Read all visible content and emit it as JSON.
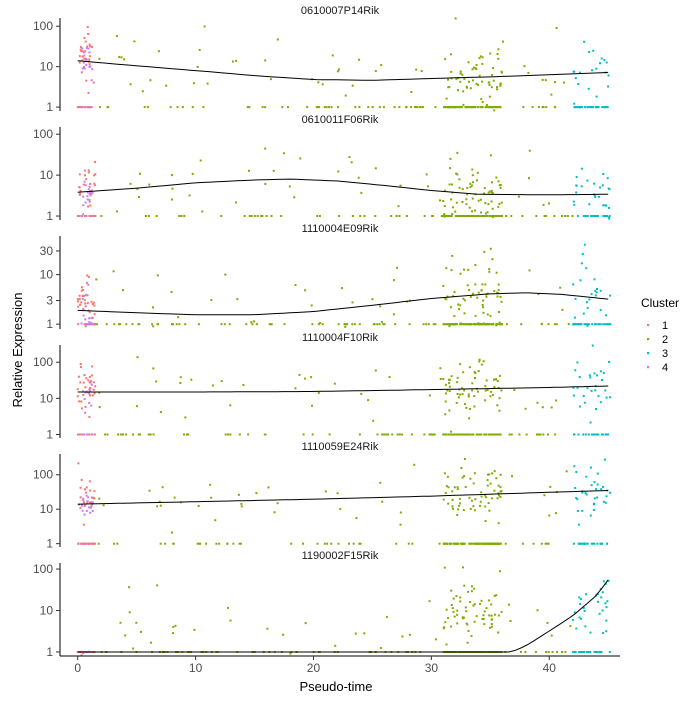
{
  "chart_data": {
    "type": "scatter",
    "xlabel": "Pseudo-time",
    "ylabel": "Relative Expression",
    "x_ticks": [
      0,
      10,
      20,
      30,
      40
    ],
    "xlim": [
      -1.5,
      46
    ],
    "y_scale": "log",
    "legend": {
      "title": "Cluster",
      "placement": "right",
      "entries": [
        {
          "label": "1",
          "color": "#F8766D"
        },
        {
          "label": "2",
          "color": "#7CAE00"
        },
        {
          "label": "3",
          "color": "#00BFC4"
        },
        {
          "label": "4",
          "color": "#C77CFF"
        }
      ]
    },
    "cluster_ranges": {
      "1": [
        0,
        1.5
      ],
      "4": [
        0.3,
        1.3
      ],
      "2": [
        1.5,
        42
      ],
      "3": [
        42,
        45.2
      ]
    },
    "panels": [
      {
        "gene": "0610007P14Rik",
        "ylim": [
          0.8,
          160
        ],
        "y_ticks": [
          1,
          10,
          100
        ],
        "y_tick_labels": [
          "1",
          "10",
          "100"
        ],
        "trend": [
          [
            0,
            14
          ],
          [
            5,
            10.5
          ],
          [
            10,
            8
          ],
          [
            15,
            6
          ],
          [
            20,
            4.8
          ],
          [
            25,
            4.6
          ],
          [
            30,
            5.1
          ],
          [
            35,
            5.6
          ],
          [
            40,
            6.3
          ],
          [
            45,
            7.2
          ]
        ]
      },
      {
        "gene": "0610011F06Rik",
        "ylim": [
          0.8,
          150
        ],
        "y_ticks": [
          1,
          10,
          100
        ],
        "y_tick_labels": [
          "1",
          "10",
          "100"
        ],
        "trend": [
          [
            0,
            3.8
          ],
          [
            5,
            4.8
          ],
          [
            10,
            6.5
          ],
          [
            15,
            7.6
          ],
          [
            18,
            8.0
          ],
          [
            22,
            7.2
          ],
          [
            26,
            5.6
          ],
          [
            30,
            4.2
          ],
          [
            34,
            3.4
          ],
          [
            40,
            3.3
          ],
          [
            45,
            3.4
          ]
        ]
      },
      {
        "gene": "1110004E09Rik",
        "ylim": [
          0.8,
          60
        ],
        "y_ticks": [
          1,
          3,
          10,
          30
        ],
        "y_tick_labels": [
          "1",
          "3",
          "10",
          "30"
        ],
        "trend": [
          [
            0,
            1.9
          ],
          [
            5,
            1.7
          ],
          [
            10,
            1.55
          ],
          [
            15,
            1.55
          ],
          [
            20,
            1.8
          ],
          [
            25,
            2.4
          ],
          [
            30,
            3.3
          ],
          [
            35,
            4.1
          ],
          [
            38,
            4.3
          ],
          [
            41,
            4.0
          ],
          [
            45,
            3.2
          ]
        ]
      },
      {
        "gene": "1110004F10Rik",
        "ylim": [
          0.8,
          300
        ],
        "y_ticks": [
          1,
          10,
          100
        ],
        "y_tick_labels": [
          "1",
          "10",
          "100"
        ],
        "trend": [
          [
            0,
            15
          ],
          [
            10,
            15
          ],
          [
            20,
            15.5
          ],
          [
            30,
            17.5
          ],
          [
            40,
            20
          ],
          [
            45,
            22
          ]
        ]
      },
      {
        "gene": "1110059E24Rik",
        "ylim": [
          0.8,
          400
        ],
        "y_ticks": [
          1,
          10,
          100
        ],
        "y_tick_labels": [
          "1",
          "10",
          "100"
        ],
        "trend": [
          [
            0,
            14
          ],
          [
            10,
            16.5
          ],
          [
            20,
            19.5
          ],
          [
            30,
            24
          ],
          [
            40,
            31
          ],
          [
            45,
            35
          ]
        ]
      },
      {
        "gene": "1190002F15Rik",
        "ylim": [
          0.8,
          140
        ],
        "y_ticks": [
          1,
          10,
          100
        ],
        "y_tick_labels": [
          "1",
          "10",
          "100"
        ],
        "trend": [
          [
            0,
            1
          ],
          [
            36.8,
            1
          ],
          [
            38,
            1.4
          ],
          [
            40,
            3.2
          ],
          [
            42,
            7.5
          ],
          [
            44,
            23
          ],
          [
            45,
            55
          ]
        ]
      }
    ]
  }
}
